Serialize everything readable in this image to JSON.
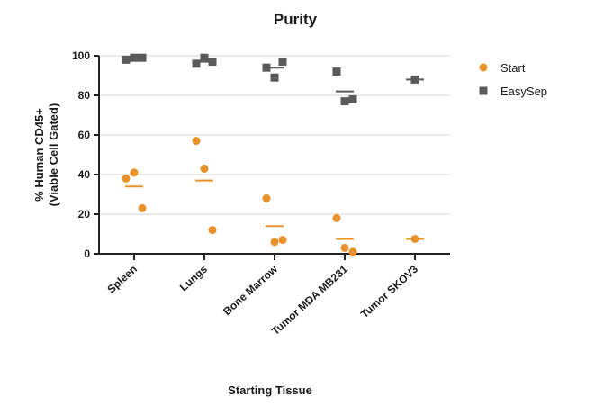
{
  "chart_data": {
    "type": "scatter",
    "title": "Purity",
    "xlabel": "Starting Tissue",
    "ylabel": "% Human CD45+",
    "ylabel_sub": "(Viable Cell Gated)",
    "categories": [
      "Spleen",
      "Lungs",
      "Bone Marrow",
      "Tumor MDA MB231",
      "Tumor SKOV3"
    ],
    "ylim": [
      0,
      100
    ],
    "yticks": [
      "0",
      "20",
      "40",
      "60",
      "80",
      "100"
    ],
    "grid": true,
    "legend_position": "top-right",
    "series": [
      {
        "name": "Start",
        "marker": "circle",
        "color": "#E8922B",
        "points": [
          {
            "category": "Spleen",
            "values": [
              38,
              41,
              23
            ]
          },
          {
            "category": "Lungs",
            "values": [
              57,
              43,
              12
            ]
          },
          {
            "category": "Bone Marrow",
            "values": [
              28,
              6,
              7
            ]
          },
          {
            "category": "Tumor MDA MB231",
            "values": [
              18,
              3,
              1
            ]
          },
          {
            "category": "Tumor SKOV3",
            "values": [
              7.5
            ]
          }
        ],
        "means": [
          34,
          37,
          14,
          7.5,
          7.5
        ]
      },
      {
        "name": "EasySep",
        "marker": "square",
        "color": "#5A5A5A",
        "points": [
          {
            "category": "Spleen",
            "values": [
              98,
              99,
              99
            ]
          },
          {
            "category": "Lungs",
            "values": [
              96,
              99,
              97
            ]
          },
          {
            "category": "Bone Marrow",
            "values": [
              94,
              89,
              97
            ]
          },
          {
            "category": "Tumor MDA MB231",
            "values": [
              92,
              77,
              78
            ]
          },
          {
            "category": "Tumor SKOV3",
            "values": [
              88
            ]
          }
        ],
        "means": [
          99,
          97,
          94,
          82,
          88
        ]
      }
    ]
  }
}
